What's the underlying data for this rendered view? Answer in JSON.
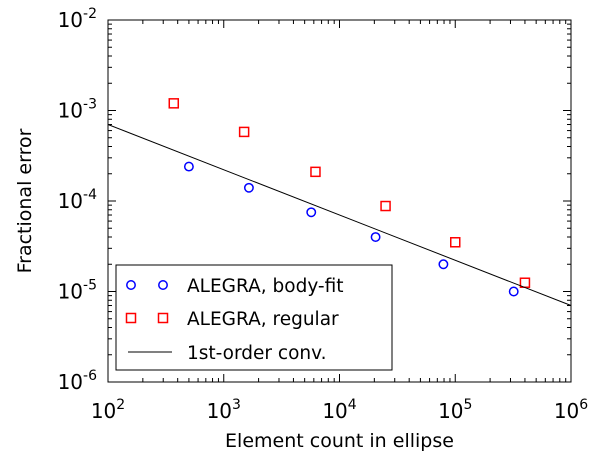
{
  "chart_data": {
    "type": "scatter",
    "xlabel": "Element count in ellipse",
    "ylabel": "Fractional error",
    "xscale": "log",
    "yscale": "log",
    "xlim": [
      100,
      1000000
    ],
    "ylim": [
      1e-06,
      0.01
    ],
    "grid": false,
    "legend_position": "lower-left",
    "x_ticks": [
      {
        "value": 100,
        "base": "10",
        "exp": "2"
      },
      {
        "value": 1000,
        "base": "10",
        "exp": "3"
      },
      {
        "value": 10000,
        "base": "10",
        "exp": "4"
      },
      {
        "value": 100000,
        "base": "10",
        "exp": "5"
      },
      {
        "value": 1000000,
        "base": "10",
        "exp": "6"
      }
    ],
    "y_ticks": [
      {
        "value": 1e-06,
        "base": "10",
        "exp": "-6"
      },
      {
        "value": 1e-05,
        "base": "10",
        "exp": "-5"
      },
      {
        "value": 0.0001,
        "base": "10",
        "exp": "-4"
      },
      {
        "value": 0.001,
        "base": "10",
        "exp": "-3"
      },
      {
        "value": 0.01,
        "base": "10",
        "exp": "-2"
      }
    ],
    "series": [
      {
        "name": "ALEGRA, body-fit",
        "marker": "circle",
        "color": "#0000ff",
        "x": [
          500,
          1650,
          5700,
          20500,
          79000,
          320000
        ],
        "y": [
          0.00024,
          0.00014,
          7.5e-05,
          4e-05,
          2e-05,
          1e-05
        ]
      },
      {
        "name": "ALEGRA, regular",
        "marker": "square",
        "color": "#ff0000",
        "x": [
          370,
          1500,
          6200,
          25000,
          100000,
          400000
        ],
        "y": [
          0.0012,
          0.00058,
          0.00021,
          8.8e-05,
          3.5e-05,
          1.25e-05
        ]
      },
      {
        "name": "1st-order conv.",
        "marker": "line",
        "color": "#000000",
        "x": [
          100,
          1000000
        ],
        "y": [
          0.0007,
          7e-06
        ]
      }
    ]
  }
}
